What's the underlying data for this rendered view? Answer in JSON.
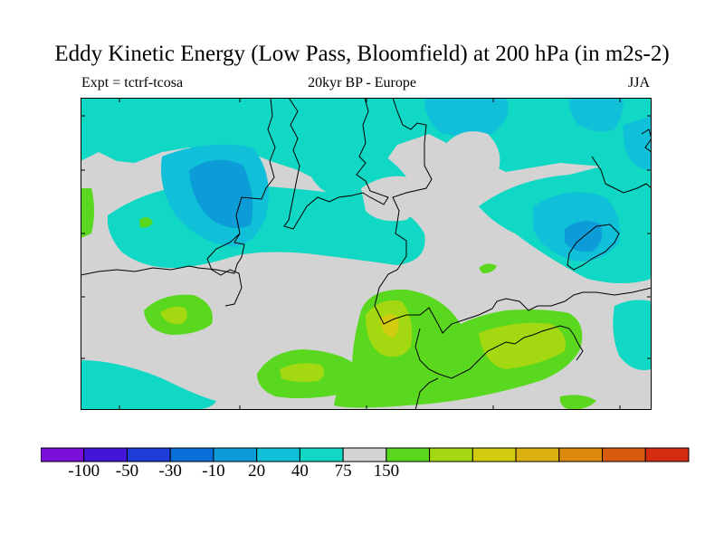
{
  "title": "Eddy Kinetic Energy (Low Pass, Bloomfield) at 200 hPa (in m2s-2)",
  "subtitle_left": "Expt = tctrf-tcosa",
  "subtitle_center": "20kyr BP - Europe",
  "subtitle_right": "JJA",
  "colors": {
    "background": "#d3d3d3",
    "coastline": "#000000",
    "frame": "#000000"
  },
  "colorbar": {
    "colors": [
      "#7a10d8",
      "#4216d8",
      "#1e3cd8",
      "#0a6fd8",
      "#0c9cd8",
      "#10c0d8",
      "#10d8c4",
      "#d3d3d3",
      "#5ad820",
      "#a4d810",
      "#d2cc10",
      "#dcb010",
      "#dc8a10",
      "#d85c10",
      "#d42c10"
    ],
    "labels": [
      "-100",
      "-50",
      "-30",
      "-10",
      "20",
      "40",
      "75",
      "150"
    ],
    "label_boundary_index": [
      2,
      4,
      6,
      8,
      10,
      12,
      14,
      16
    ]
  }
}
